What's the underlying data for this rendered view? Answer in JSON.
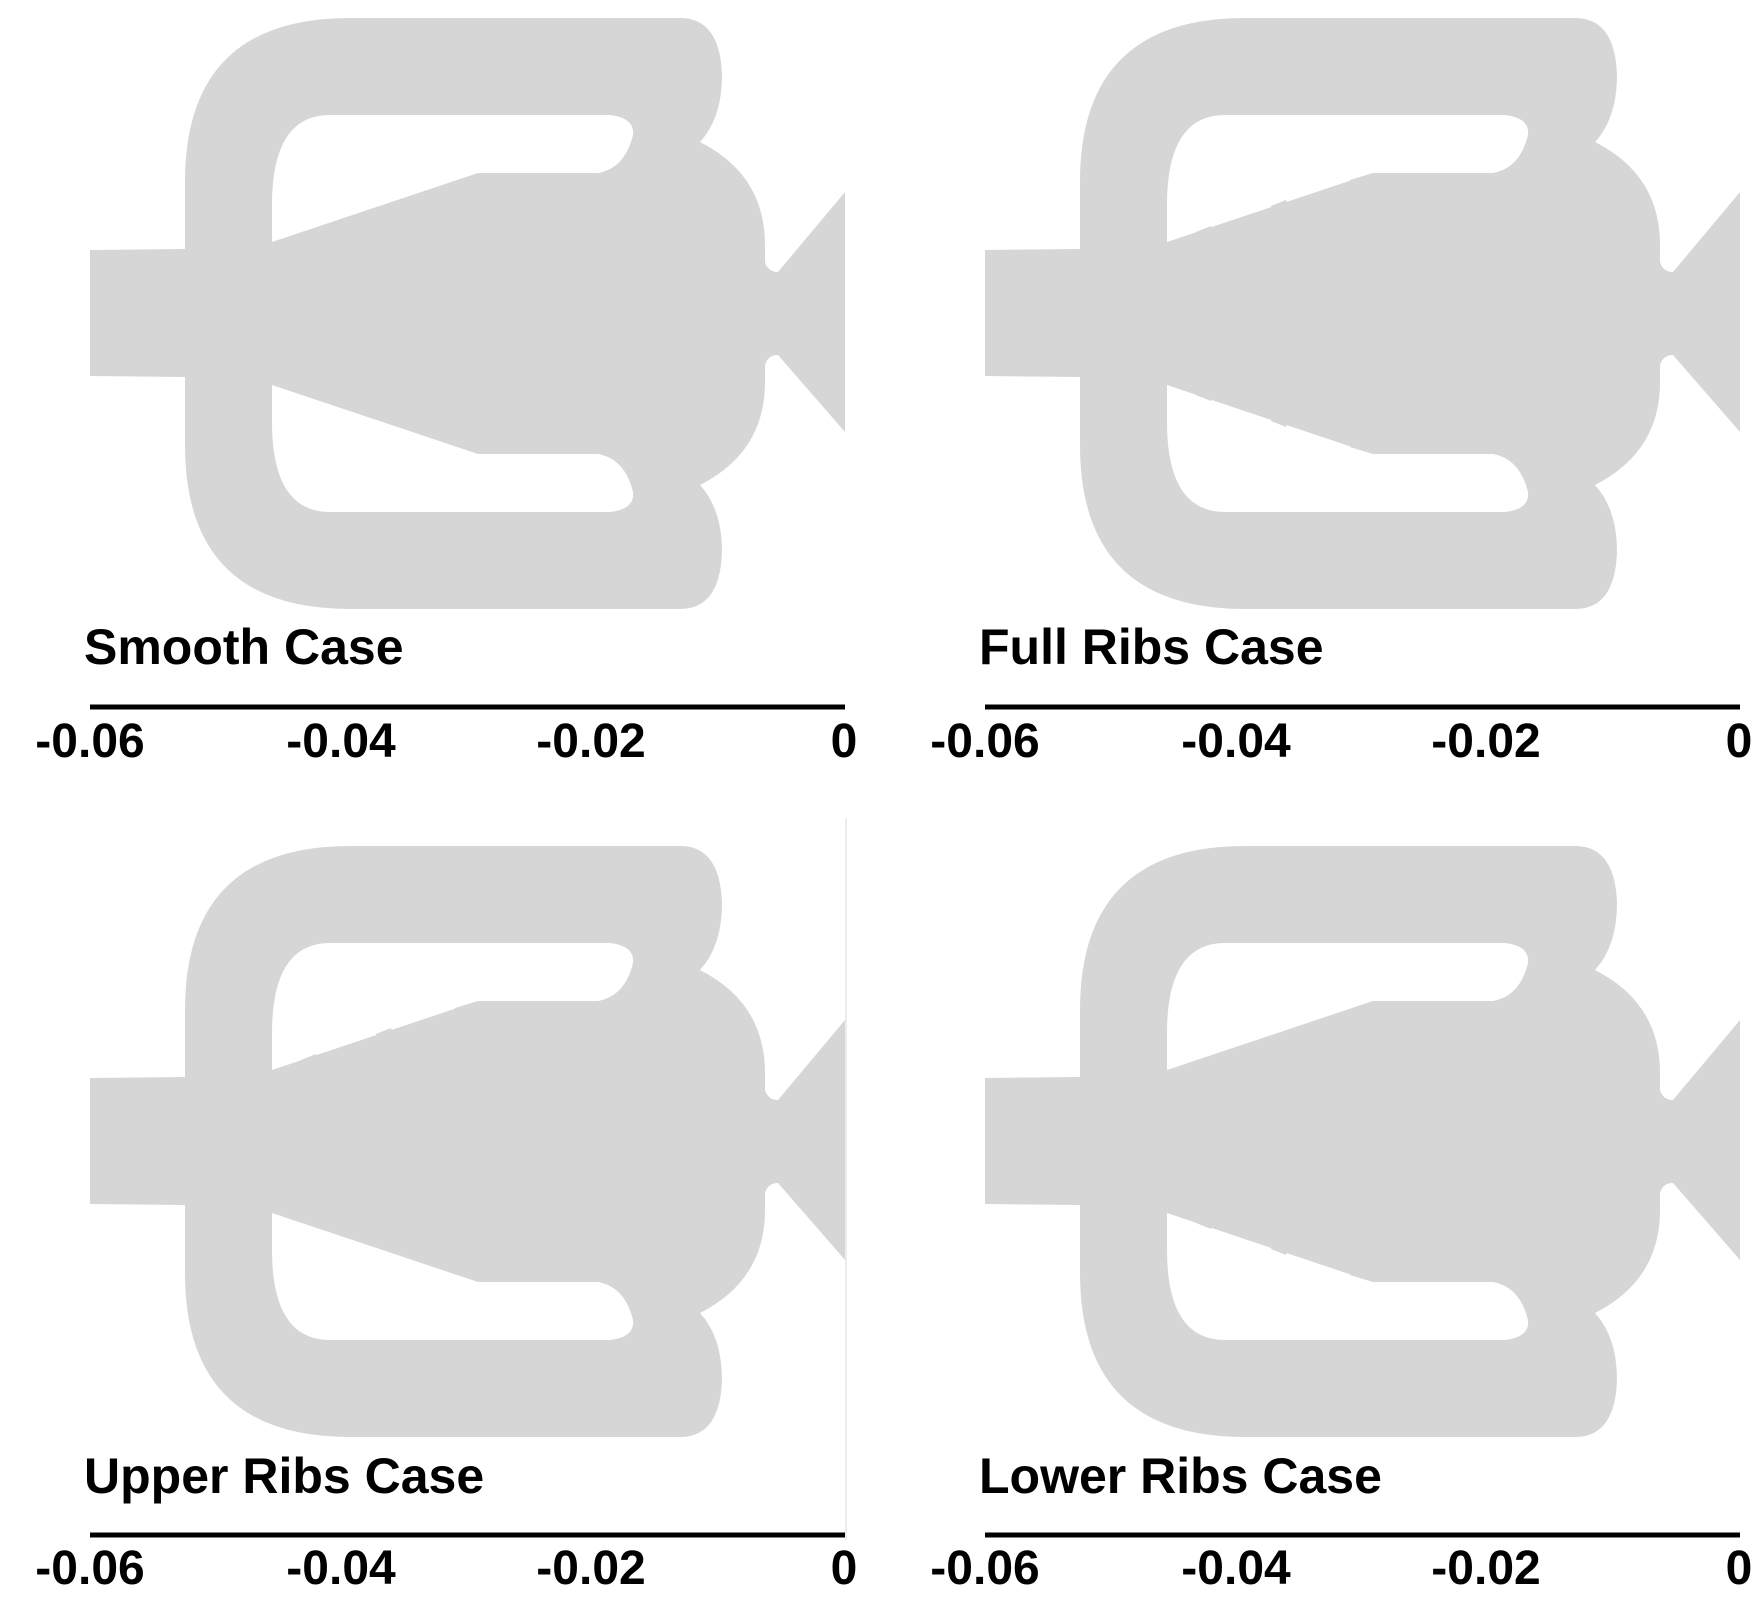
{
  "colors": {
    "shape_fill": "#d6d6d6",
    "axis_line": "#000000",
    "background": "#ffffff"
  },
  "x_axis": {
    "range": [
      -0.06,
      0
    ],
    "ticks": [
      {
        "value": -0.06,
        "label": "-0.06"
      },
      {
        "value": -0.04,
        "label": "-0.04"
      },
      {
        "value": -0.02,
        "label": "-0.02"
      },
      {
        "value": 0,
        "label": "0"
      }
    ]
  },
  "panels": [
    {
      "title": "Smooth Case",
      "upper_ribs": false,
      "lower_ribs": false
    },
    {
      "title": "Full Ribs Case",
      "upper_ribs": true,
      "lower_ribs": true
    },
    {
      "title": "Upper Ribs Case",
      "upper_ribs": true,
      "lower_ribs": false
    },
    {
      "title": "Lower Ribs Case",
      "upper_ribs": false,
      "lower_ribs": true
    }
  ]
}
